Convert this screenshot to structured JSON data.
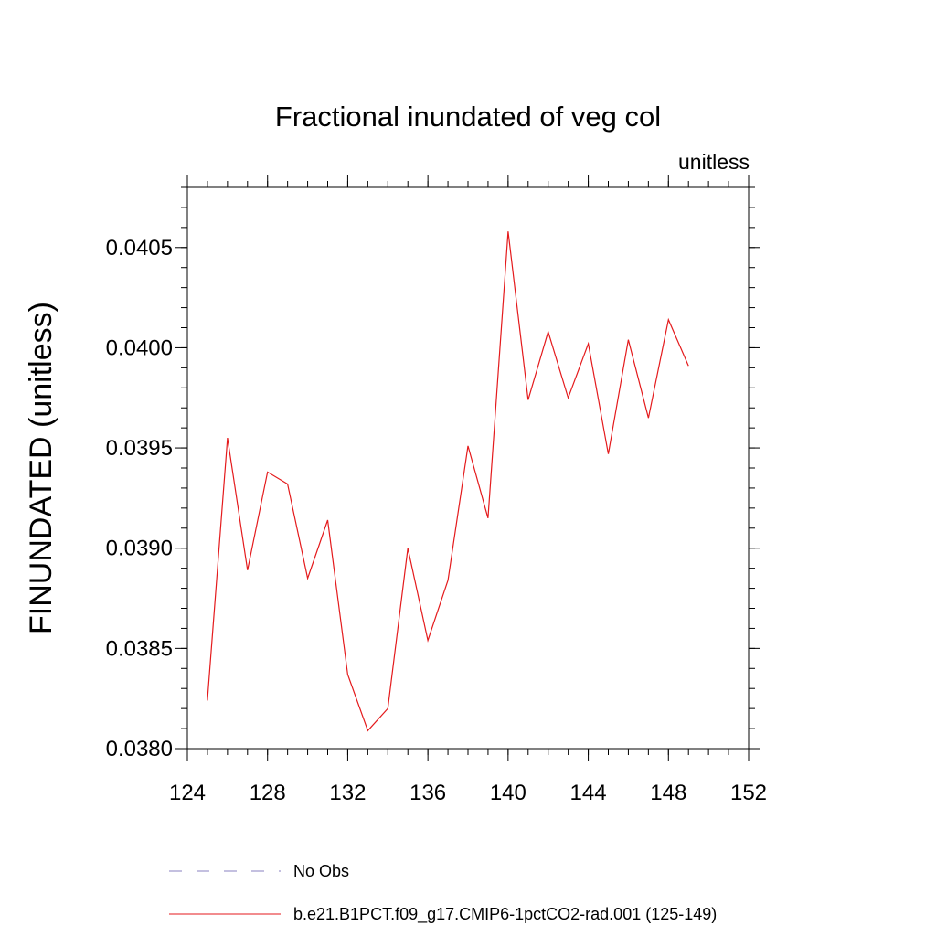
{
  "chart_data": {
    "type": "line",
    "title": "Fractional inundated of veg col",
    "units_label": "unitless",
    "xlabel": "",
    "ylabel": "FINUNDATED  (unitless)",
    "xlim": [
      124,
      152
    ],
    "ylim": [
      0.038,
      0.0408
    ],
    "x_ticks": [
      "124",
      "128",
      "132",
      "136",
      "140",
      "144",
      "148",
      "152"
    ],
    "y_ticks": [
      "0.0380",
      "0.0385",
      "0.0390",
      "0.0395",
      "0.0400",
      "0.0405"
    ],
    "grid": false,
    "legend_position": "bottom",
    "series": [
      {
        "name": "No Obs",
        "style": "dashed",
        "color": "#8a80c0",
        "x": [],
        "y": []
      },
      {
        "name": "b.e21.B1PCT.f09_g17.CMIP6-1pctCO2-rad.001 (125-149)",
        "style": "solid",
        "color": "#e41a1c",
        "x": [
          125,
          126,
          127,
          128,
          129,
          130,
          131,
          132,
          133,
          134,
          135,
          136,
          137,
          138,
          139,
          140,
          141,
          142,
          143,
          144,
          145,
          146,
          147,
          148,
          149
        ],
        "y": [
          0.03824,
          0.03955,
          0.03889,
          0.03938,
          0.03932,
          0.03885,
          0.03914,
          0.03837,
          0.03809,
          0.0382,
          0.039,
          0.03854,
          0.03884,
          0.03951,
          0.03915,
          0.04058,
          0.03974,
          0.04008,
          0.03975,
          0.04002,
          0.03947,
          0.04004,
          0.03965,
          0.04014,
          0.03991
        ]
      }
    ]
  }
}
